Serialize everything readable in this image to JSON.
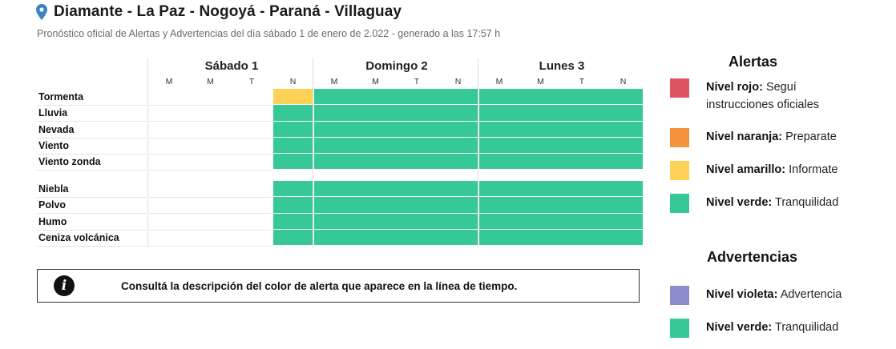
{
  "header": {
    "title": "Diamante - La Paz - Nogoyá - Paraná - Villaguay",
    "subtitle": "Pronóstico oficial de Alertas y Advertencias del día sábado 1 de enero de 2.022 - generado a las 17:57 h"
  },
  "colors": {
    "rojo": "#e05460",
    "naranja": "#f5923e",
    "amarillo": "#fdd257",
    "verde": "#36c896",
    "violeta": "#8c8bcc",
    "empty": "#ffffff"
  },
  "timeline": {
    "days": [
      {
        "label": "Sábado 1",
        "slots": [
          "M",
          "M",
          "T",
          "N"
        ]
      },
      {
        "label": "Domingo 2",
        "slots": [
          "M",
          "M",
          "T",
          "N"
        ]
      },
      {
        "label": "Lunes 3",
        "slots": [
          "M",
          "M",
          "T",
          "N"
        ]
      }
    ],
    "alert_rows": [
      {
        "label": "Tormenta",
        "levels": [
          "none",
          "none",
          "none",
          "amarillo",
          "verde",
          "verde",
          "verde",
          "verde",
          "verde",
          "verde",
          "verde",
          "verde"
        ]
      },
      {
        "label": "Lluvia",
        "levels": [
          "none",
          "none",
          "none",
          "verde",
          "verde",
          "verde",
          "verde",
          "verde",
          "verde",
          "verde",
          "verde",
          "verde"
        ]
      },
      {
        "label": "Nevada",
        "levels": [
          "none",
          "none",
          "none",
          "verde",
          "verde",
          "verde",
          "verde",
          "verde",
          "verde",
          "verde",
          "verde",
          "verde"
        ]
      },
      {
        "label": "Viento",
        "levels": [
          "none",
          "none",
          "none",
          "verde",
          "verde",
          "verde",
          "verde",
          "verde",
          "verde",
          "verde",
          "verde",
          "verde"
        ]
      },
      {
        "label": "Viento zonda",
        "levels": [
          "none",
          "none",
          "none",
          "verde",
          "verde",
          "verde",
          "verde",
          "verde",
          "verde",
          "verde",
          "verde",
          "verde"
        ]
      }
    ],
    "warning_rows": [
      {
        "label": "Niebla",
        "levels": [
          "none",
          "none",
          "none",
          "verde",
          "verde",
          "verde",
          "verde",
          "verde",
          "verde",
          "verde",
          "verde",
          "verde"
        ]
      },
      {
        "label": "Polvo",
        "levels": [
          "none",
          "none",
          "none",
          "verde",
          "verde",
          "verde",
          "verde",
          "verde",
          "verde",
          "verde",
          "verde",
          "verde"
        ]
      },
      {
        "label": "Humo",
        "levels": [
          "none",
          "none",
          "none",
          "verde",
          "verde",
          "verde",
          "verde",
          "verde",
          "verde",
          "verde",
          "verde",
          "verde"
        ]
      },
      {
        "label": "Ceniza volcánica",
        "levels": [
          "none",
          "none",
          "none",
          "verde",
          "verde",
          "verde",
          "verde",
          "verde",
          "verde",
          "verde",
          "verde",
          "verde"
        ]
      }
    ]
  },
  "info_box": {
    "icon": "info-icon",
    "text": "Consultá la descripción del color de alerta que aparece en la línea de tiempo."
  },
  "legend": {
    "alertas_title": "Alertas",
    "alertas": [
      {
        "color": "rojo",
        "level": "Nivel rojo:",
        "desc": "Seguí instrucciones oficiales"
      },
      {
        "color": "naranja",
        "level": "Nivel naranja:",
        "desc": "Preparate"
      },
      {
        "color": "amarillo",
        "level": "Nivel amarillo:",
        "desc": "Informate"
      },
      {
        "color": "verde",
        "level": "Nivel verde:",
        "desc": "Tranquilidad"
      }
    ],
    "advertencias_title": "Advertencias",
    "advertencias": [
      {
        "color": "violeta",
        "level": "Nivel violeta:",
        "desc": "Advertencia"
      },
      {
        "color": "verde",
        "level": "Nivel verde:",
        "desc": "Tranquilidad"
      }
    ]
  }
}
